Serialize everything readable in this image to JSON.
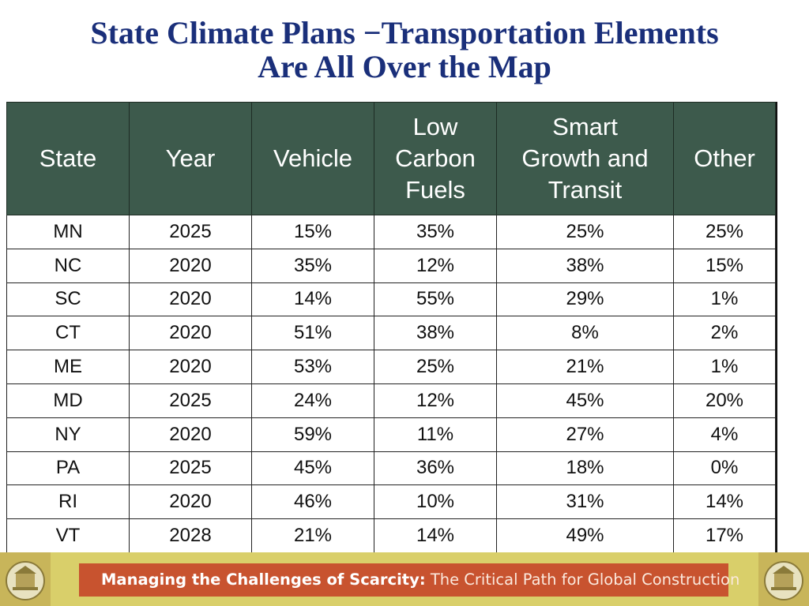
{
  "title": {
    "line1": "State Climate Plans −Transportation Elements",
    "line2": "Are All Over the Map"
  },
  "table": {
    "headers": [
      [
        "State"
      ],
      [
        "Year"
      ],
      [
        "Vehicle"
      ],
      [
        "Low",
        "Carbon",
        "Fuels"
      ],
      [
        "Smart",
        "Growth and",
        "Transit"
      ],
      [
        "Other"
      ]
    ],
    "rows": [
      [
        "MN",
        "2025",
        "15%",
        "35%",
        "25%",
        "25%"
      ],
      [
        "NC",
        "2020",
        "35%",
        "12%",
        "38%",
        "15%"
      ],
      [
        "SC",
        "2020",
        "14%",
        "55%",
        "29%",
        "1%"
      ],
      [
        "CT",
        "2020",
        "51%",
        "38%",
        "8%",
        "2%"
      ],
      [
        "ME",
        "2020",
        "53%",
        "25%",
        "21%",
        "1%"
      ],
      [
        "MD",
        "2025",
        "24%",
        "12%",
        "45%",
        "20%"
      ],
      [
        "NY",
        "2020",
        "59%",
        "11%",
        "27%",
        "4%"
      ],
      [
        "PA",
        "2025",
        "45%",
        "36%",
        "18%",
        "0%"
      ],
      [
        "RI",
        "2020",
        "46%",
        "10%",
        "31%",
        "14%"
      ],
      [
        "VT",
        "2028",
        "21%",
        "14%",
        "49%",
        "17%"
      ]
    ]
  },
  "footer": {
    "banner_bold": "Managing the Challenges of Scarcity:",
    "banner_rest": " The Critical Path for Global Construction"
  },
  "colors": {
    "title": "#1a2f7a",
    "header_bg": "#3d5a4c",
    "footer_bg": "#d9cf6a",
    "banner_bg": "#c8532f"
  },
  "icons": [
    "building-logo-icon"
  ]
}
